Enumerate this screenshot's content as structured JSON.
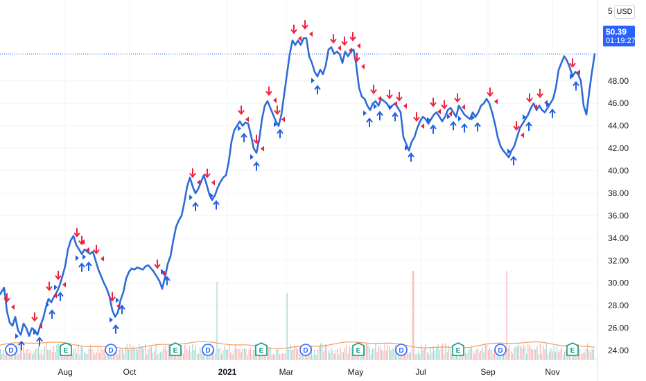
{
  "chart_data": {
    "type": "line",
    "currency": "USD",
    "last_price": "50.39",
    "countdown": "01:19:27",
    "top_partial_label": "5",
    "ylim": [
      23.2,
      55.2
    ],
    "y_ticks": [
      "24.00",
      "26.00",
      "28.00",
      "30.00",
      "32.00",
      "34.00",
      "36.00",
      "38.00",
      "40.00",
      "42.00",
      "44.00",
      "46.00",
      "48.00"
    ],
    "y_tick_values": [
      24,
      26,
      28,
      30,
      32,
      34,
      36,
      38,
      40,
      42,
      44,
      46,
      48
    ],
    "x_ticks": [
      {
        "label": "Aug",
        "t": 94,
        "bold": false
      },
      {
        "label": "Oct",
        "t": 187,
        "bold": false
      },
      {
        "label": "2021",
        "t": 328,
        "bold": true
      },
      {
        "label": "Mar",
        "t": 413,
        "bold": false
      },
      {
        "label": "May",
        "t": 513,
        "bold": false
      },
      {
        "label": "Jul",
        "t": 607,
        "bold": false
      },
      {
        "label": "Sep",
        "t": 704,
        "bold": false
      },
      {
        "label": "Nov",
        "t": 797,
        "bold": false
      }
    ],
    "xlim": [
      0,
      862
    ],
    "series": [
      {
        "values": [
          [
            0,
            29
          ],
          [
            6,
            29.6
          ],
          [
            10,
            27.5
          ],
          [
            14,
            26.5
          ],
          [
            18,
            26.2
          ],
          [
            22,
            27
          ],
          [
            26,
            25.8
          ],
          [
            30,
            25.4
          ],
          [
            34,
            26.4
          ],
          [
            38,
            26
          ],
          [
            42,
            25.3
          ],
          [
            46,
            26
          ],
          [
            50,
            25.8
          ],
          [
            54,
            25.4
          ],
          [
            58,
            26.2
          ],
          [
            62,
            26.8
          ],
          [
            66,
            27.8
          ],
          [
            70,
            28.6
          ],
          [
            74,
            28.3
          ],
          [
            78,
            28.8
          ],
          [
            82,
            29.2
          ],
          [
            86,
            29.8
          ],
          [
            90,
            30.6
          ],
          [
            94,
            31.5
          ],
          [
            98,
            33
          ],
          [
            102,
            33.8
          ],
          [
            106,
            34.2
          ],
          [
            110,
            33.4
          ],
          [
            114,
            33
          ],
          [
            118,
            32.6
          ],
          [
            122,
            33
          ],
          [
            126,
            32.8
          ],
          [
            130,
            32.6
          ],
          [
            134,
            32.8
          ],
          [
            138,
            32
          ],
          [
            142,
            31.2
          ],
          [
            146,
            30.6
          ],
          [
            150,
            30
          ],
          [
            154,
            29.5
          ],
          [
            158,
            28.8
          ],
          [
            162,
            27.6
          ],
          [
            166,
            27
          ],
          [
            170,
            27.4
          ],
          [
            174,
            28.5
          ],
          [
            178,
            29.2
          ],
          [
            182,
            30.4
          ],
          [
            186,
            31
          ],
          [
            190,
            31.3
          ],
          [
            194,
            31.2
          ],
          [
            198,
            31.4
          ],
          [
            202,
            31.3
          ],
          [
            206,
            31.2
          ],
          [
            210,
            31.5
          ],
          [
            214,
            31.6
          ],
          [
            218,
            31.3
          ],
          [
            222,
            31
          ],
          [
            226,
            30.6
          ],
          [
            230,
            30.2
          ],
          [
            234,
            29.5
          ],
          [
            238,
            30.5
          ],
          [
            242,
            31.7
          ],
          [
            246,
            32.4
          ],
          [
            250,
            33.8
          ],
          [
            254,
            35
          ],
          [
            258,
            35.6
          ],
          [
            262,
            36
          ],
          [
            266,
            37.2
          ],
          [
            270,
            38.6
          ],
          [
            274,
            39.4
          ],
          [
            278,
            38.6
          ],
          [
            282,
            38
          ],
          [
            286,
            38.4
          ],
          [
            290,
            39
          ],
          [
            294,
            39.6
          ],
          [
            298,
            38.8
          ],
          [
            302,
            37.9
          ],
          [
            306,
            37.4
          ],
          [
            310,
            37.8
          ],
          [
            314,
            38.5
          ],
          [
            318,
            39
          ],
          [
            322,
            39.4
          ],
          [
            326,
            39.6
          ],
          [
            330,
            40.8
          ],
          [
            334,
            42.6
          ],
          [
            338,
            43.6
          ],
          [
            342,
            44
          ],
          [
            346,
            44.4
          ],
          [
            350,
            44
          ],
          [
            354,
            44.3
          ],
          [
            358,
            44.2
          ],
          [
            362,
            43.2
          ],
          [
            366,
            42
          ],
          [
            370,
            41.6
          ],
          [
            374,
            42.8
          ],
          [
            378,
            44.6
          ],
          [
            382,
            45.8
          ],
          [
            386,
            46.2
          ],
          [
            390,
            45.6
          ],
          [
            394,
            45
          ],
          [
            398,
            44.4
          ],
          [
            402,
            44
          ],
          [
            406,
            45
          ],
          [
            410,
            46.8
          ],
          [
            414,
            48.6
          ],
          [
            418,
            50.4
          ],
          [
            422,
            51.6
          ],
          [
            426,
            51.2
          ],
          [
            430,
            51.6
          ],
          [
            434,
            51.2
          ],
          [
            438,
            51.8
          ],
          [
            442,
            51.8
          ],
          [
            446,
            50.2
          ],
          [
            450,
            49.6
          ],
          [
            454,
            48.8
          ],
          [
            458,
            48.4
          ],
          [
            462,
            49
          ],
          [
            466,
            48.6
          ],
          [
            470,
            49.4
          ],
          [
            474,
            50.8
          ],
          [
            478,
            51
          ],
          [
            482,
            50.4
          ],
          [
            486,
            50.6
          ],
          [
            490,
            50.4
          ],
          [
            494,
            49.6
          ],
          [
            498,
            50.6
          ],
          [
            502,
            50.2
          ],
          [
            506,
            50.6
          ],
          [
            510,
            50.8
          ],
          [
            514,
            49.4
          ],
          [
            518,
            47.4
          ],
          [
            522,
            46.6
          ],
          [
            526,
            46.4
          ],
          [
            530,
            45.8
          ],
          [
            534,
            45.4
          ],
          [
            538,
            46
          ],
          [
            542,
            46.2
          ],
          [
            546,
            45.8
          ],
          [
            550,
            46.4
          ],
          [
            554,
            46.2
          ],
          [
            558,
            46
          ],
          [
            562,
            45.6
          ],
          [
            566,
            45.8
          ],
          [
            570,
            46
          ],
          [
            574,
            45.6
          ],
          [
            578,
            45.2
          ],
          [
            582,
            43
          ],
          [
            586,
            42.4
          ],
          [
            590,
            41.8
          ],
          [
            594,
            42.6
          ],
          [
            598,
            43
          ],
          [
            602,
            43.8
          ],
          [
            606,
            44.4
          ],
          [
            610,
            44.8
          ],
          [
            614,
            44.6
          ],
          [
            618,
            44.2
          ],
          [
            622,
            44.6
          ],
          [
            626,
            45
          ],
          [
            630,
            45.2
          ],
          [
            634,
            44.8
          ],
          [
            638,
            44.4
          ],
          [
            642,
            44.8
          ],
          [
            646,
            45.4
          ],
          [
            650,
            45.6
          ],
          [
            654,
            45.2
          ],
          [
            658,
            44.8
          ],
          [
            662,
            45.8
          ],
          [
            666,
            45.4
          ],
          [
            670,
            45
          ],
          [
            674,
            44.8
          ],
          [
            678,
            44.6
          ],
          [
            682,
            45.2
          ],
          [
            686,
            44.8
          ],
          [
            690,
            45.2
          ],
          [
            694,
            45.8
          ],
          [
            698,
            46
          ],
          [
            702,
            46.4
          ],
          [
            706,
            46
          ],
          [
            710,
            45.2
          ],
          [
            714,
            44.2
          ],
          [
            718,
            43
          ],
          [
            722,
            42.2
          ],
          [
            726,
            41.8
          ],
          [
            730,
            41.5
          ],
          [
            734,
            41.2
          ],
          [
            738,
            41.8
          ],
          [
            742,
            42.2
          ],
          [
            746,
            43
          ],
          [
            750,
            43.8
          ],
          [
            754,
            44.2
          ],
          [
            758,
            44.6
          ],
          [
            762,
            45
          ],
          [
            766,
            45.6
          ],
          [
            770,
            46
          ],
          [
            774,
            45.4
          ],
          [
            778,
            45.8
          ],
          [
            782,
            45.4
          ],
          [
            786,
            45.2
          ],
          [
            790,
            45.6
          ],
          [
            794,
            46
          ],
          [
            798,
            46.4
          ],
          [
            802,
            47.4
          ],
          [
            806,
            49
          ],
          [
            810,
            49.6
          ],
          [
            814,
            50.2
          ],
          [
            818,
            49.8
          ],
          [
            822,
            49.2
          ],
          [
            826,
            48.4
          ],
          [
            830,
            48.8
          ],
          [
            834,
            48.6
          ],
          [
            838,
            48
          ],
          [
            842,
            45.8
          ],
          [
            846,
            45
          ],
          [
            850,
            47
          ],
          [
            854,
            48.8
          ],
          [
            858,
            50.39
          ]
        ]
      }
    ],
    "volume": {
      "color_up": "#26a69a",
      "color_down": "#ef5350",
      "spikes": [
        [
          312,
          14
        ],
        [
          414,
          12
        ],
        [
          595,
          16
        ],
        [
          730,
          16
        ]
      ]
    },
    "event_badges": [
      {
        "label": "D",
        "t": 16
      },
      {
        "label": "E",
        "t": 95
      },
      {
        "label": "D",
        "t": 160
      },
      {
        "label": "E",
        "t": 253
      },
      {
        "label": "D",
        "t": 300
      },
      {
        "label": "E",
        "t": 377
      },
      {
        "label": "D",
        "t": 441
      },
      {
        "label": "E",
        "t": 517
      },
      {
        "label": "D",
        "t": 579
      },
      {
        "label": "E",
        "t": 661
      },
      {
        "label": "D",
        "t": 722
      },
      {
        "label": "E",
        "t": 826
      }
    ],
    "sell_arrow_t": [
      10,
      50,
      71,
      84,
      111,
      118,
      139,
      162,
      227,
      278,
      299,
      348,
      370,
      388,
      400,
      424,
      440,
      481,
      497,
      509,
      515,
      539,
      562,
      576,
      601,
      625,
      641,
      660,
      707,
      745,
      764,
      779,
      826
    ],
    "buy_arrow_t": [
      31,
      57,
      75,
      87,
      118,
      128,
      167,
      176,
      241,
      282,
      312,
      352,
      370,
      404,
      458,
      533,
      548,
      570,
      593,
      625,
      654,
      670,
      689,
      741,
      763,
      797,
      831
    ],
    "colors": {
      "line": "#2f6bd6",
      "sell": "#f0203c",
      "buy": "#1c5ee6",
      "ma": "#f59b5b",
      "grid": "#f0f3fa",
      "axis_text": "#131722",
      "badge_d": "#2962ff",
      "badge_e": "#089981",
      "price_label": "#2962ff"
    }
  }
}
